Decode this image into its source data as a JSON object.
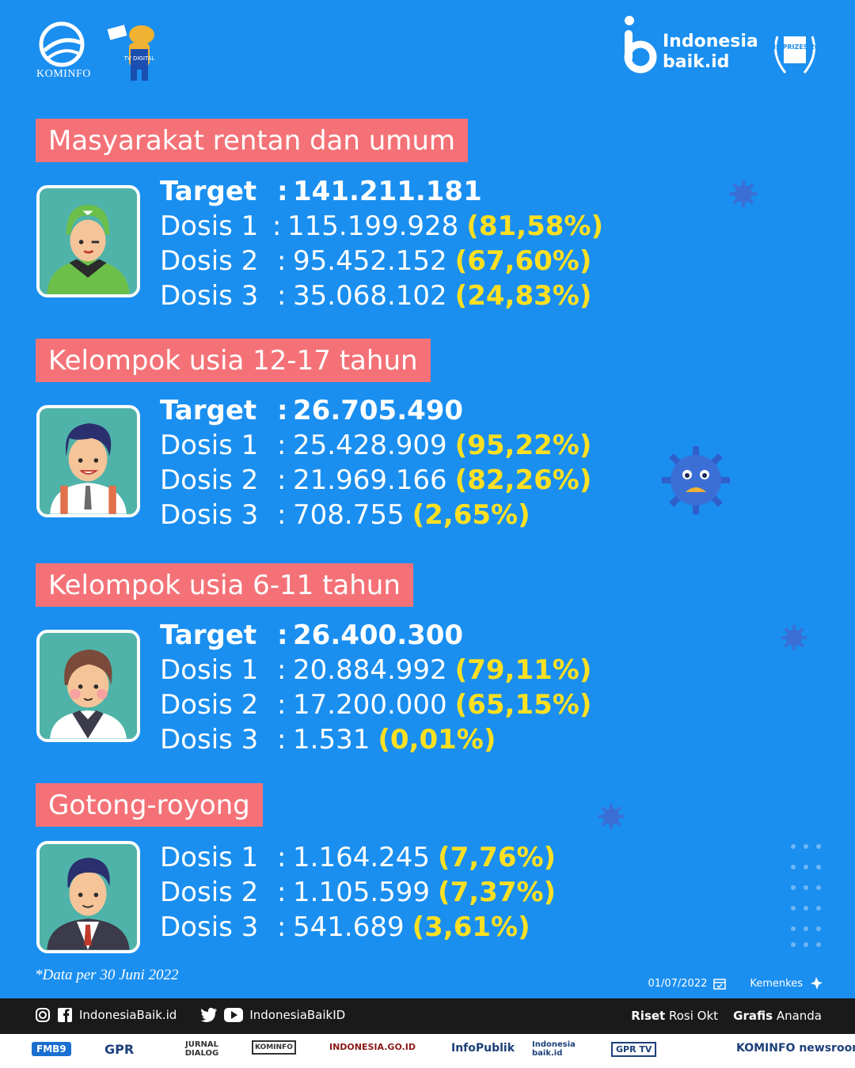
{
  "header": {
    "kominfo_text": "KOMINFO",
    "brand_line1": "Indonesia",
    "brand_line2": "baik.id",
    "mascot_text": "TV DIGITAL",
    "award_text": "WSIS PRIZES 2018"
  },
  "sections": [
    {
      "title": "Masyarakat rentan dan umum",
      "target_label": "Target",
      "target_value": "141.211.181",
      "doses": [
        {
          "label": "Dosis 1",
          "value": "115.199.928",
          "pct": "(81,58%)"
        },
        {
          "label": "Dosis 2",
          "value": "95.452.152",
          "pct": "(67,60%)"
        },
        {
          "label": "Dosis 3",
          "value": "35.068.102",
          "pct": "(24,83%)"
        }
      ]
    },
    {
      "title": "Kelompok usia 12-17 tahun",
      "target_label": "Target",
      "target_value": "26.705.490",
      "doses": [
        {
          "label": "Dosis 1",
          "value": "25.428.909",
          "pct": "(95,22%)"
        },
        {
          "label": "Dosis 2",
          "value": "21.969.166",
          "pct": "(82,26%)"
        },
        {
          "label": "Dosis 3",
          "value": "708.755",
          "pct": "(2,65%)"
        }
      ]
    },
    {
      "title": "Kelompok usia 6-11 tahun",
      "target_label": "Target",
      "target_value": "26.400.300",
      "doses": [
        {
          "label": "Dosis 1",
          "value": "20.884.992",
          "pct": "(79,11%)"
        },
        {
          "label": "Dosis 2",
          "value": "17.200.000",
          "pct": "(65,15%)"
        },
        {
          "label": "Dosis 3",
          "value": "1.531",
          "pct": "(0,01%)"
        }
      ]
    },
    {
      "title": "Gotong-royong",
      "doses": [
        {
          "label": "Dosis 1",
          "value": "1.164.245",
          "pct": "(7,76%)"
        },
        {
          "label": "Dosis 2",
          "value": "1.105.599",
          "pct": "(7,37%)"
        },
        {
          "label": "Dosis 3",
          "value": "541.689",
          "pct": "(3,61%)"
        }
      ]
    }
  ],
  "colon": ":",
  "footnote": "*Data per 30 Juni 2022",
  "date": "01/07/2022",
  "source": "Kemenkes",
  "social": {
    "handle1": "IndonesiaBaik.id",
    "handle2": "IndonesiaBaikID"
  },
  "credits": {
    "riset_label": "Riset",
    "riset_name": "Rosi Okt",
    "grafis_label": "Grafis",
    "grafis_name": "Ananda"
  },
  "partners": [
    "FMB9",
    "GPR",
    "JURNAL DIALOG",
    "KOMINFO",
    "INDONESIA.GO.ID",
    "InfoPublik",
    "Indonesia baik.id",
    "GPR TV",
    "KOMINFO newsroom"
  ],
  "colors": {
    "background": "#1a8ff0",
    "title_box": "#f47277",
    "highlight": "#ffe022"
  }
}
